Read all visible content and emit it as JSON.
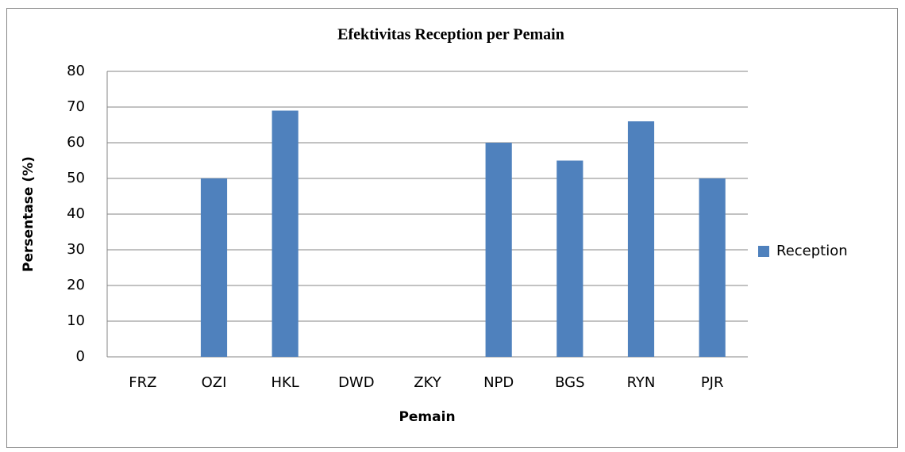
{
  "chart_data": {
    "type": "bar",
    "title": "Efektivitas Reception per Pemain",
    "x_label": "Pemain",
    "y_label": "Persentase (%)",
    "categories": [
      "FRZ",
      "OZI",
      "HKL",
      "DWD",
      "ZKY",
      "NPD",
      "BGS",
      "RYN",
      "PJR"
    ],
    "series": [
      {
        "name": "Reception",
        "color": "#4f81bd",
        "values": [
          0,
          50,
          69,
          0,
          0,
          60,
          55,
          66,
          50
        ]
      }
    ],
    "ylim": [
      0,
      80
    ],
    "yticks": [
      0,
      10,
      20,
      30,
      40,
      50,
      60,
      70,
      80
    ],
    "grid": true,
    "legend": "right"
  }
}
